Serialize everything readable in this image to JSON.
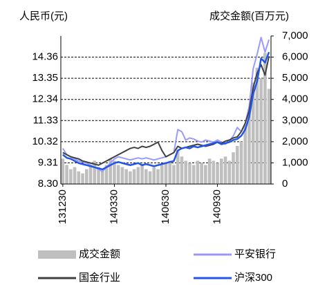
{
  "chart_data": {
    "type": "bar_line",
    "ylabel": "人民币(元)",
    "y2label": "成交金额(百万元)",
    "categories": [
      "131230",
      null,
      null,
      null,
      null,
      null,
      null,
      null,
      null,
      null,
      null,
      null,
      null,
      "140330",
      null,
      null,
      null,
      null,
      null,
      null,
      null,
      null,
      null,
      null,
      null,
      null,
      "140630",
      null,
      null,
      null,
      null,
      null,
      null,
      null,
      null,
      null,
      null,
      null,
      null,
      "140930",
      null,
      null,
      null,
      null,
      null,
      null,
      null,
      null,
      null,
      null,
      null,
      null,
      null
    ],
    "ylim": [
      8.3,
      15.37
    ],
    "yticks": [
      {
        "value": 8.3,
        "label": "8.30"
      },
      9.31,
      10.32,
      11.33,
      12.34,
      13.35,
      14.36
    ],
    "y2lim": [
      0,
      7000
    ],
    "y2ticks": [
      0,
      {
        "value": 1000,
        "label": "1,000"
      },
      {
        "value": 2000,
        "label": "2,000"
      },
      {
        "value": 3000,
        "label": "3,000"
      },
      {
        "value": 4000,
        "label": "4,000"
      },
      {
        "value": 5000,
        "label": "5,000"
      },
      {
        "value": 6000,
        "label": "6,000"
      },
      {
        "value": 7000,
        "label": "7,000"
      }
    ],
    "grid": true,
    "series": [
      {
        "name": "成交金额",
        "type": "bar",
        "axis": "y2",
        "color": "#bfbfbf",
        "values": [
          1200,
          900,
          700,
          800,
          600,
          500,
          700,
          900,
          1100,
          800,
          600,
          900,
          1200,
          1100,
          900,
          800,
          700,
          600,
          700,
          800,
          900,
          700,
          600,
          800,
          700,
          900,
          1000,
          1100,
          900,
          1600,
          1300,
          1100,
          1000,
          900,
          1100,
          1000,
          900,
          1200,
          1100,
          1000,
          1200,
          1300,
          1100,
          1500,
          1800,
          2000,
          2800,
          3500,
          4800,
          5500,
          5000,
          6200,
          4500
        ]
      },
      {
        "name": "平安银行",
        "type": "line",
        "color": "#9999ff",
        "values": [
          10.0,
          9.7,
          9.6,
          9.5,
          9.4,
          9.35,
          9.3,
          9.2,
          9.1,
          9.0,
          8.9,
          9.1,
          9.3,
          9.5,
          9.6,
          9.55,
          9.5,
          9.45,
          9.5,
          9.55,
          9.5,
          9.55,
          9.5,
          9.45,
          9.5,
          9.55,
          9.6,
          9.7,
          9.8,
          10.9,
          10.8,
          10.4,
          10.5,
          10.45,
          10.35,
          10.3,
          10.4,
          10.35,
          10.3,
          10.4,
          10.3,
          10.2,
          10.35,
          10.6,
          11.0,
          10.8,
          11.2,
          12.0,
          13.8,
          14.5,
          15.3,
          14.6,
          15.2
        ]
      },
      {
        "name": "国金行业",
        "type": "line",
        "color": "#404040",
        "values": [
          9.8,
          9.7,
          9.6,
          9.55,
          9.5,
          9.4,
          9.35,
          9.3,
          9.25,
          9.2,
          9.3,
          9.4,
          9.5,
          9.6,
          9.7,
          9.8,
          9.9,
          10.0,
          10.05,
          10.0,
          10.1,
          10.05,
          10.1,
          10.2,
          10.3,
          9.9,
          9.6,
          9.7,
          9.8,
          10.1,
          10.0,
          10.05,
          10.1,
          10.15,
          10.2,
          10.15,
          10.1,
          10.15,
          10.2,
          10.3,
          10.25,
          10.35,
          10.4,
          10.5,
          10.55,
          10.8,
          11.2,
          11.8,
          12.9,
          13.6,
          14.0,
          13.5,
          14.4
        ]
      },
      {
        "name": "沪深300",
        "type": "line",
        "color": "#2255e8",
        "values": [
          9.7,
          9.55,
          9.5,
          9.4,
          9.3,
          9.25,
          9.2,
          9.15,
          9.1,
          9.05,
          9.0,
          9.1,
          9.2,
          9.3,
          9.35,
          9.3,
          9.25,
          9.2,
          9.25,
          9.3,
          9.2,
          9.25,
          9.2,
          9.15,
          9.2,
          9.25,
          9.3,
          9.35,
          9.4,
          9.9,
          10.0,
          10.05,
          10.0,
          10.1,
          10.05,
          10.1,
          10.15,
          10.2,
          10.25,
          10.3,
          10.2,
          10.25,
          10.3,
          10.4,
          10.45,
          10.6,
          10.9,
          11.5,
          12.6,
          13.2,
          14.3,
          14.1,
          14.6
        ]
      }
    ]
  }
}
